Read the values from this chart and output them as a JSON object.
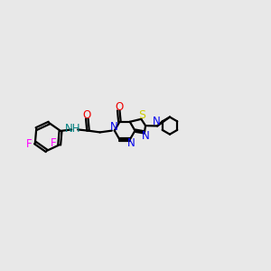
{
  "bg_color": "#e8e8e8",
  "bond_color": "#000000",
  "colors": {
    "N": "#0000ee",
    "O": "#ee0000",
    "S": "#cccc00",
    "F": "#ff00ff",
    "H": "#008080",
    "C": "#000000"
  },
  "lw": 1.6,
  "dbo": 0.055,
  "figsize": [
    3.0,
    3.0
  ],
  "dpi": 100
}
